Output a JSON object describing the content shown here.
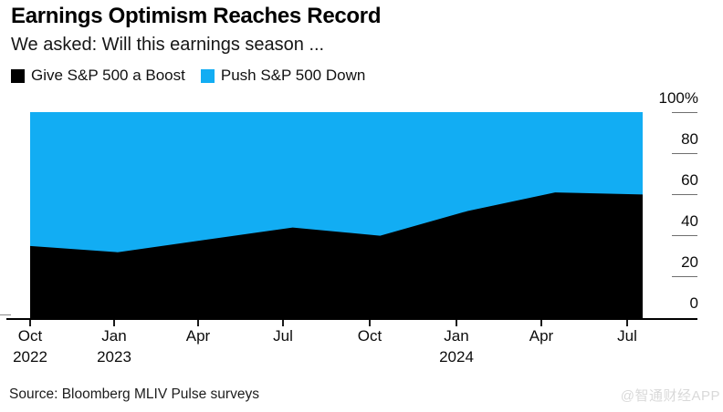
{
  "header": {
    "title": "Earnings Optimism Reaches Record",
    "subtitle": "We asked: Will this earnings season ..."
  },
  "legend": [
    {
      "label": "Give S&P 500 a Boost",
      "color": "#000000"
    },
    {
      "label": "Push S&P 500 Down",
      "color": "#12adf3"
    }
  ],
  "chart_data": {
    "type": "area",
    "stacked": true,
    "title": "Earnings Optimism Reaches Record",
    "subtitle": "We asked: Will this earnings season ...",
    "x": [
      "Oct 2022",
      "Jan 2023",
      "Apr 2023",
      "Jul 2023",
      "Oct 2023",
      "Jan 2024",
      "Apr 2024",
      "Jul 2024"
    ],
    "series": [
      {
        "name": "Give S&P 500 a Boost",
        "color": "#000000",
        "values": [
          35,
          32,
          38,
          44,
          40,
          52,
          61,
          60
        ]
      },
      {
        "name": "Push S&P 500 Down",
        "color": "#12adf3",
        "values": [
          65,
          68,
          62,
          56,
          60,
          48,
          39,
          40
        ]
      }
    ],
    "ylim": [
      0,
      100
    ],
    "y_unit": "%",
    "y_tick_labels": [
      "100%",
      "80",
      "60",
      "40",
      "20",
      "0"
    ],
    "y_tick_values": [
      100,
      80,
      60,
      40,
      20,
      0
    ],
    "x_tick_labels": [
      [
        "Oct",
        "2022"
      ],
      [
        "Jan",
        "2023"
      ],
      [
        "Apr"
      ],
      [
        "Jul"
      ],
      [
        "Oct"
      ],
      [
        "Jan",
        "2024"
      ],
      [
        "Apr"
      ],
      [
        "Jul"
      ]
    ],
    "grid": false,
    "legend_position": "top",
    "y_axis_side": "right"
  },
  "footer": {
    "source": "Source: Bloomberg MLIV Pulse surveys",
    "watermark": "@智通财经APP"
  }
}
